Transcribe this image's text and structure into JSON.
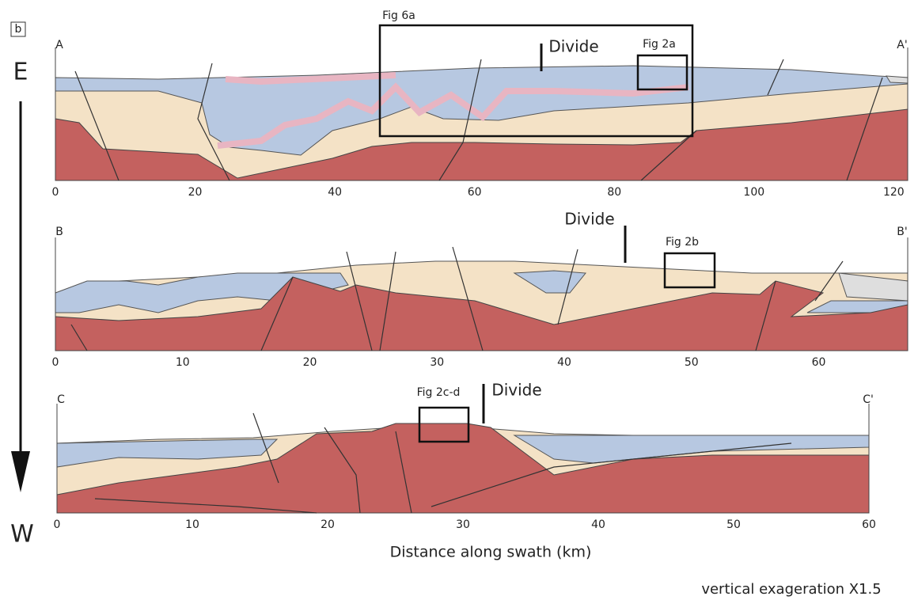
{
  "panel_label": "b",
  "direction": {
    "top": "E",
    "bottom": "W"
  },
  "x_axis_label": "Distance along swath (km)",
  "note": "vertical exageration X1.5",
  "sections": [
    {
      "start": "A",
      "end": "A'",
      "xlim": [
        0,
        122
      ],
      "xticks": [
        0,
        20,
        40,
        60,
        80,
        100,
        120
      ],
      "annotations": [
        {
          "label": "Fig 6a"
        },
        {
          "label": "Divide"
        },
        {
          "label": "Fig 2a"
        }
      ]
    },
    {
      "start": "B",
      "end": "B'",
      "xlim": [
        0,
        67
      ],
      "xticks": [
        0,
        10,
        20,
        30,
        40,
        50,
        60
      ],
      "annotations": [
        {
          "label": "Divide"
        },
        {
          "label": "Fig 2b"
        }
      ]
    },
    {
      "start": "C",
      "end": "C'",
      "xlim": [
        0,
        60
      ],
      "xticks": [
        0,
        10,
        20,
        30,
        40,
        50,
        60
      ],
      "annotations": [
        {
          "label": "Fig 2c-d"
        },
        {
          "label": "Divide"
        }
      ]
    }
  ]
}
